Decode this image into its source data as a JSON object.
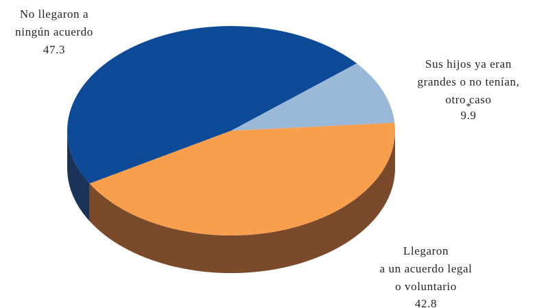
{
  "chart_data": {
    "type": "pie",
    "style": "3d",
    "slices": [
      {
        "label_lines": [
          "No llegaron a",
          "ningún acuerdo"
        ],
        "value": 47.3,
        "value_text": "47.3",
        "color": "#0d4a98",
        "side_color": "#1c3358"
      },
      {
        "label_lines": [
          "Sus hijos ya eran",
          "grandes o no tenían,",
          "otro caso"
        ],
        "value": 9.9,
        "value_text": "9.9",
        "note": "*",
        "color": "#9ab8d8",
        "side_color": "#6f8fb0"
      },
      {
        "label_lines": [
          "Llegaron",
          "a un acuerdo legal",
          "o voluntario"
        ],
        "value": 42.8,
        "value_text": "42.8",
        "color": "#f79f4c",
        "side_color": "#7b4a2a"
      }
    ]
  }
}
